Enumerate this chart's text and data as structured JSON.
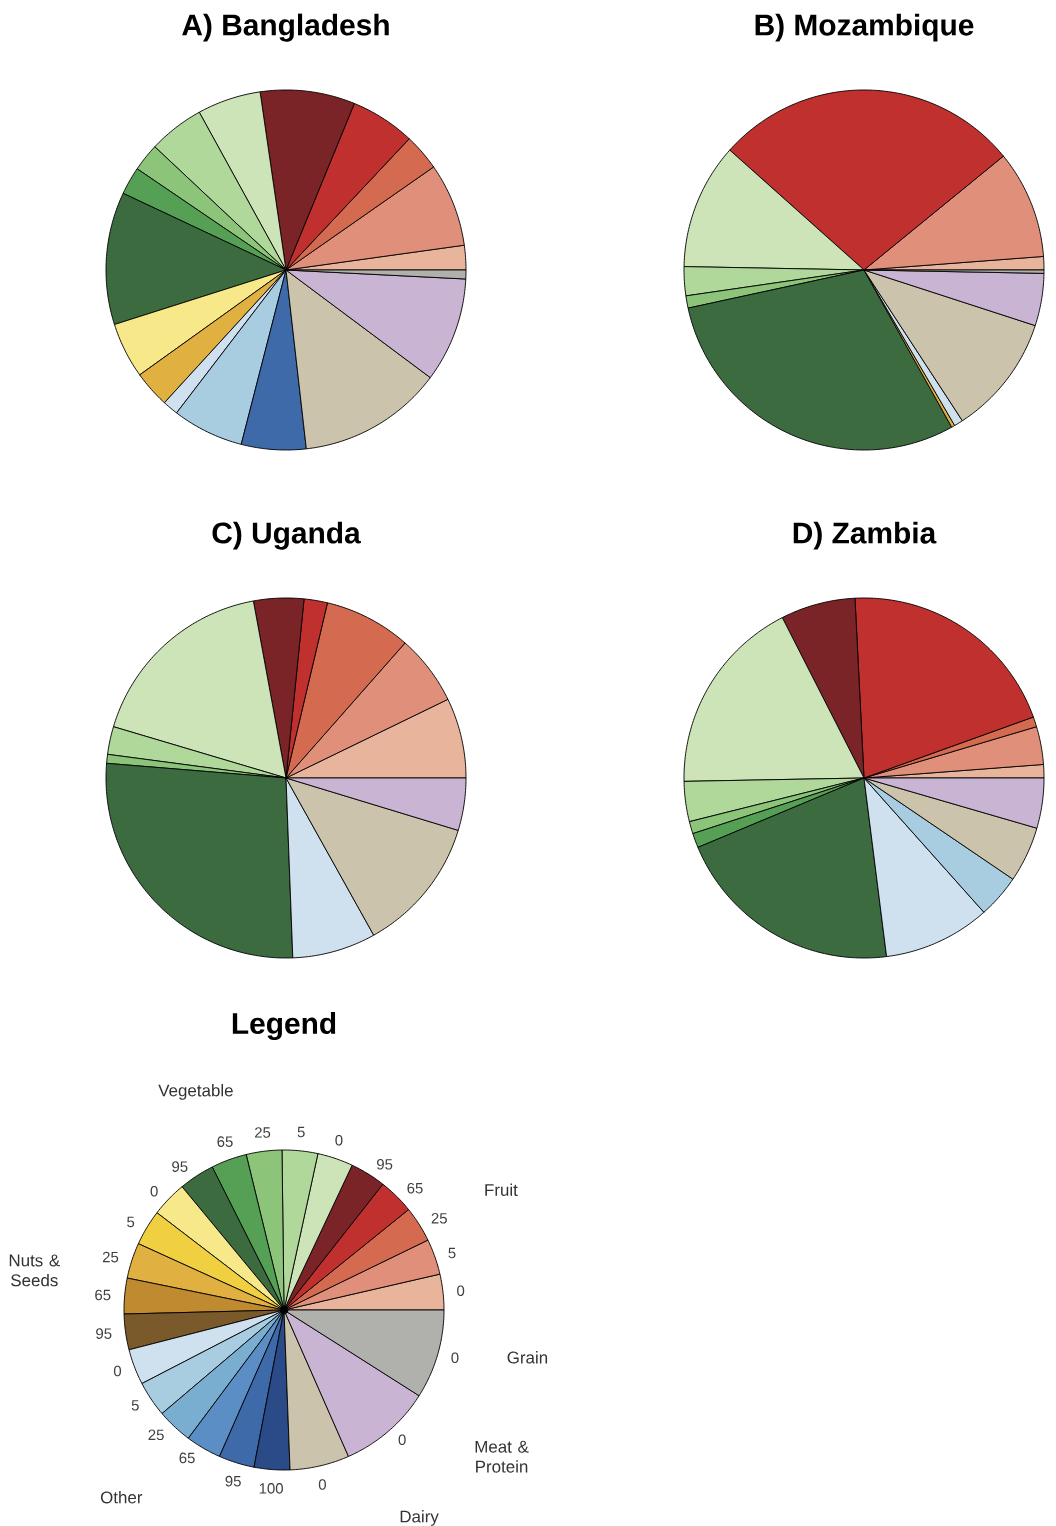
{
  "chart_data": [
    {
      "type": "pie",
      "title": "A)  Bangladesh",
      "categories": [
        null,
        null,
        null,
        null,
        null,
        null,
        null,
        null,
        null,
        null,
        null,
        null,
        null,
        null,
        null,
        null,
        null,
        null,
        null,
        null,
        null,
        null,
        null,
        null
      ],
      "values": [
        2.2,
        7.5,
        3.3,
        5.8,
        8.5,
        5.7,
        5.0,
        2.5,
        2.5,
        11.9,
        5.0,
        0,
        3.3,
        0,
        0,
        1.4,
        6.4,
        0,
        0,
        5.8,
        0,
        13.0,
        9.4,
        0.8
      ],
      "colors": [
        "#e8b49c",
        "#e0907a",
        "#d46a4f",
        "#c0302e",
        "#7a2428",
        "#cde3b8",
        "#b0d89a",
        "#8cc47a",
        "#55a055",
        "#3c6b40",
        "#f7e98a",
        "#f0d040",
        "#e0b040",
        "#c08a30",
        "#7a5a2a",
        "#cfe0ee",
        "#a8cce0",
        "#7aaed0",
        "#5a8ec4",
        "#3f6aaa",
        "#2a4a88",
        "#cbc3ac",
        "#c9b4d4",
        "#b0b0ac"
      ]
    },
    {
      "type": "pie",
      "title": "B)  Mozambique",
      "categories": [
        null,
        null,
        null,
        null,
        null,
        null,
        null,
        null,
        null,
        null,
        null,
        null,
        null,
        null,
        null,
        null,
        null,
        null,
        null,
        null,
        null,
        null,
        null,
        null
      ],
      "values": [
        1.2,
        9.7,
        0,
        27.5,
        0,
        11.3,
        2.6,
        1.1,
        0,
        29.7,
        0,
        0,
        0.3,
        0,
        0,
        0.8,
        0,
        0,
        0,
        0,
        0,
        10.8,
        4.7,
        0.3
      ],
      "colors": [
        "#e8b49c",
        "#e0907a",
        "#d46a4f",
        "#c0302e",
        "#7a2428",
        "#cde3b8",
        "#b0d89a",
        "#8cc47a",
        "#55a055",
        "#3c6b40",
        "#f7e98a",
        "#f0d040",
        "#e0b040",
        "#c08a30",
        "#7a5a2a",
        "#cfe0ee",
        "#a8cce0",
        "#7aaed0",
        "#5a8ec4",
        "#3f6aaa",
        "#2a4a88",
        "#cbc3ac",
        "#c9b4d4",
        "#b0b0ac"
      ]
    },
    {
      "type": "pie",
      "title": "C)     Uganda",
      "categories": [
        null,
        null,
        null,
        null,
        null,
        null,
        null,
        null,
        null,
        null,
        null,
        null,
        null,
        null,
        null,
        null,
        null,
        null,
        null,
        null,
        null,
        null,
        null,
        null
      ],
      "values": [
        7.2,
        6.3,
        7.8,
        2.1,
        4.5,
        17.5,
        2.5,
        0.8,
        0,
        26.9,
        0,
        0,
        0,
        0,
        0,
        7.5,
        0,
        0,
        0,
        0,
        0,
        12.2,
        4.7,
        0
      ],
      "colors": [
        "#e8b49c",
        "#e0907a",
        "#d46a4f",
        "#c0302e",
        "#7a2428",
        "#cde3b8",
        "#b0d89a",
        "#8cc47a",
        "#55a055",
        "#3c6b40",
        "#f7e98a",
        "#f0d040",
        "#e0b040",
        "#c08a30",
        "#7a5a2a",
        "#cfe0ee",
        "#a8cce0",
        "#7aaed0",
        "#5a8ec4",
        "#3f6aaa",
        "#2a4a88",
        "#cbc3ac",
        "#c9b4d4",
        "#b0b0ac"
      ]
    },
    {
      "type": "pie",
      "title": "D)     Zambia",
      "categories": [
        null,
        null,
        null,
        null,
        null,
        null,
        null,
        null,
        null,
        null,
        null,
        null,
        null,
        null,
        null,
        null,
        null,
        null,
        null,
        null,
        null,
        null,
        null,
        null
      ],
      "values": [
        1.2,
        3.4,
        0.9,
        20.3,
        6.7,
        17.8,
        3.6,
        1.1,
        1.3,
        20.7,
        0,
        0,
        0,
        0,
        0,
        9.6,
        3.9,
        0,
        0,
        0,
        0,
        5.0,
        4.5,
        0
      ],
      "colors": [
        "#e8b49c",
        "#e0907a",
        "#d46a4f",
        "#c0302e",
        "#7a2428",
        "#cde3b8",
        "#b0d89a",
        "#8cc47a",
        "#55a055",
        "#3c6b40",
        "#f7e98a",
        "#f0d040",
        "#e0b040",
        "#c08a30",
        "#7a5a2a",
        "#cfe0ee",
        "#a8cce0",
        "#7aaed0",
        "#5a8ec4",
        "#3f6aaa",
        "#2a4a88",
        "#cbc3ac",
        "#c9b4d4",
        "#b0b0ac"
      ]
    },
    {
      "type": "pie",
      "title": "Legend",
      "categories": [
        "0",
        "5",
        "25",
        "65",
        "95",
        "0",
        "5",
        "25",
        "65",
        "95",
        "0",
        "5",
        "25",
        "65",
        "95",
        "0",
        "5",
        "25",
        "65",
        "95",
        "100",
        "0",
        "0",
        "0"
      ],
      "values": [
        3.6,
        3.6,
        3.6,
        3.6,
        3.6,
        3.6,
        3.6,
        3.6,
        3.6,
        3.6,
        3.6,
        3.6,
        3.6,
        3.6,
        3.6,
        3.6,
        3.6,
        3.6,
        3.6,
        3.6,
        3.6,
        6.0,
        9.4,
        9.0
      ],
      "colors": [
        "#e8b49c",
        "#e0907a",
        "#d46a4f",
        "#c0302e",
        "#7a2428",
        "#cde3b8",
        "#b0d89a",
        "#8cc47a",
        "#55a055",
        "#3c6b40",
        "#f7e98a",
        "#f0d040",
        "#e0b040",
        "#c08a30",
        "#7a5a2a",
        "#cfe0ee",
        "#a8cce0",
        "#7aaed0",
        "#5a8ec4",
        "#3f6aaa",
        "#2a4a88",
        "#cbc3ac",
        "#c9b4d4",
        "#b0b0ac"
      ],
      "annotations": [
        "Vegetable",
        "Fruit",
        "Nuts & Seeds",
        "Other",
        "Dairy",
        "Meat & Protein",
        "Grain"
      ]
    }
  ]
}
